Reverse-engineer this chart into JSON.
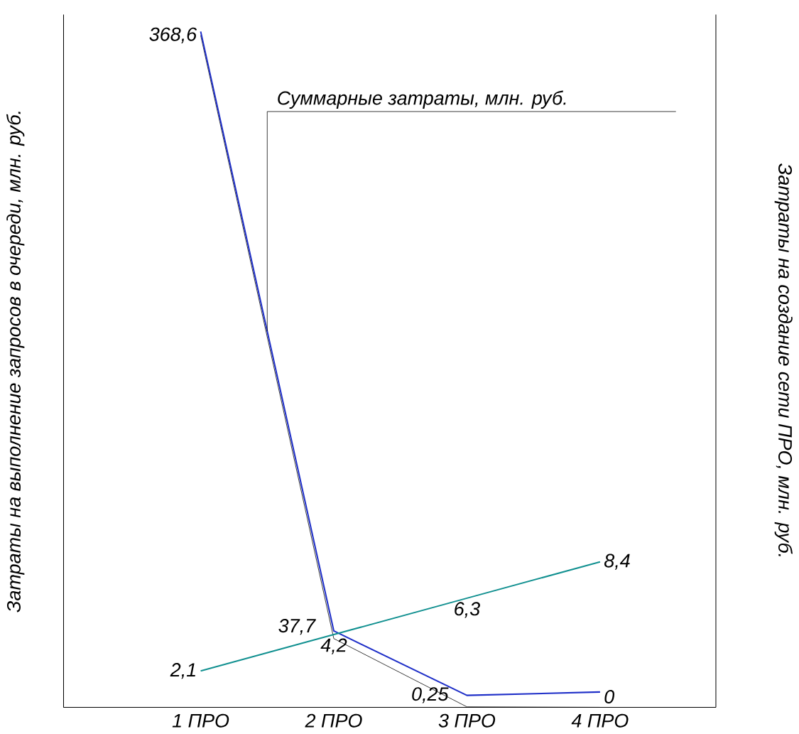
{
  "chart_data": {
    "type": "line",
    "categories": [
      "1 ПРО",
      "2 ПРО",
      "3 ПРО",
      "4 ПРО"
    ],
    "ylabel": "Затраты на выполнение запросов в очереди, млн. руб.",
    "y2label": "Затраты на создание сети ПРО, млн. руб.",
    "ylim": [
      0,
      380
    ],
    "y2lim": [
      0,
      40
    ],
    "tick_labels": "x",
    "grid": false,
    "legend": false,
    "marker": "none",
    "line_style": "solid",
    "series": [
      {
        "color": "#000000",
        "values": [
          368.6,
          37.7,
          0.25,
          0
        ],
        "value_labels": [
          "368,6",
          "37,7",
          "0,25",
          "0"
        ]
      },
      {
        "name": "Суммарные затраты, млн. руб.",
        "color": "#1f2fc8",
        "values": [
          370.7,
          41.9,
          6.55,
          8.4
        ]
      },
      {
        "color": "#119090",
        "axis": "y2",
        "values": [
          2.1,
          4.2,
          6.3,
          8.4
        ],
        "value_labels": [
          "2,1",
          "4,2",
          "6,3",
          "8,4"
        ]
      }
    ]
  }
}
